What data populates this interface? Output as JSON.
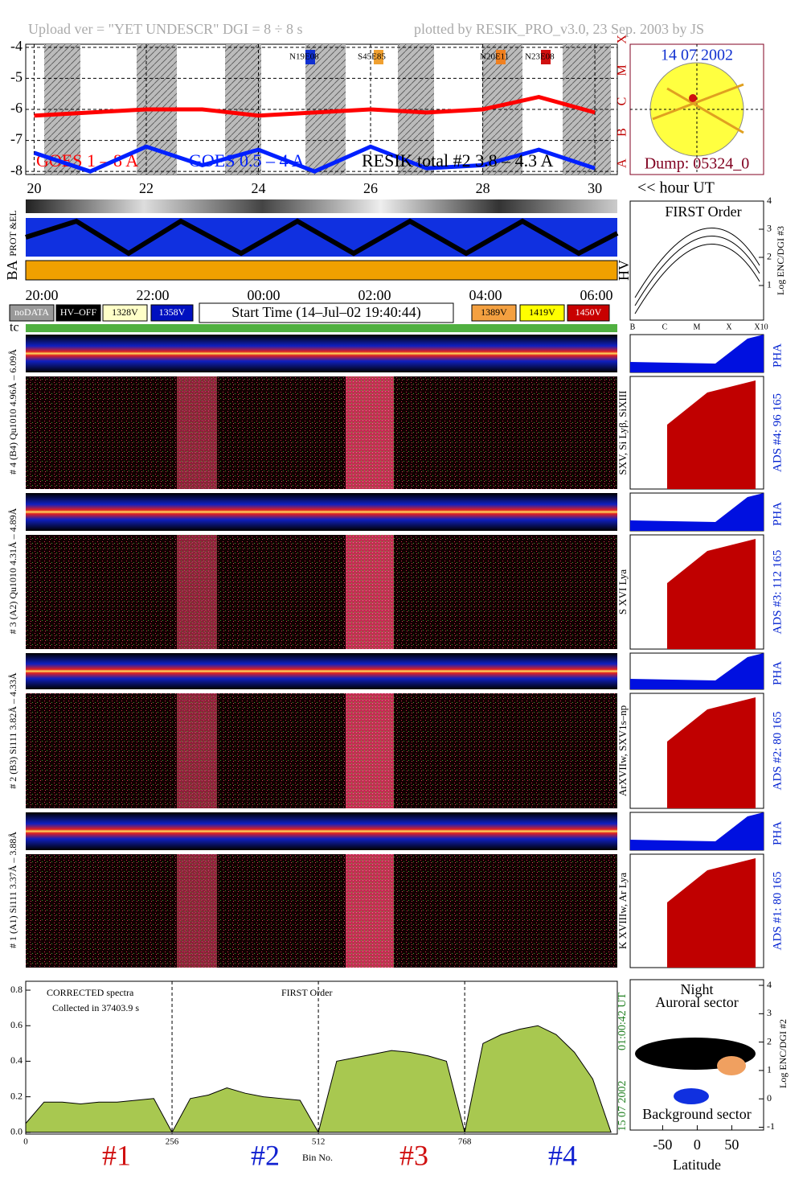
{
  "header": {
    "upload": "Upload ver = \"YET UNDESCR\"  DGI =   8 ÷   8 s",
    "plotted": "plotted by RESIK_PRO_v3.0, 23 Sep. 2003 by JS"
  },
  "goes": {
    "type": "line",
    "xlim": [
      19.85,
      30.4
    ],
    "ylim": [
      -8.1,
      -3.9
    ],
    "yticks": [
      -4,
      -5,
      -6,
      -7,
      -8
    ],
    "xticks": [
      20,
      22,
      24,
      26,
      28,
      30
    ],
    "classes": [
      "X",
      "M",
      "C",
      "B",
      "A"
    ],
    "regions": [
      {
        "label": "N19E08",
        "color": "#1030d0"
      },
      {
        "label": "S45E85",
        "color": "#f0a030"
      },
      {
        "label": "N20E11",
        "color": "#f08020"
      },
      {
        "label": "N23E08",
        "color": "#d01010"
      }
    ],
    "x": [
      20,
      21,
      22,
      23,
      24,
      25,
      26,
      27,
      28,
      29,
      30
    ],
    "series": [
      {
        "name": "GOES 1 – 8 A",
        "color": "#ff0000",
        "values": [
          -6.2,
          -6.1,
          -6.0,
          -6.0,
          -6.2,
          -6.1,
          -6.0,
          -6.1,
          -6.0,
          -5.6,
          -6.1
        ]
      },
      {
        "name": "GOES 0.5 – 4 A",
        "color": "#0020ff",
        "values": [
          -7.4,
          -8.0,
          -7.2,
          -7.8,
          -7.3,
          -8.0,
          -7.2,
          -7.9,
          -7.8,
          -7.3,
          -7.9
        ]
      }
    ],
    "resik_label": "RESIK total #2 3.8 – 4.3 A",
    "x_unit": "<< hour UT"
  },
  "sun": {
    "date": "14 07 2002",
    "dump": "Dump: 05324_0"
  },
  "bands": {
    "prot": "PROT &EL",
    "ba": "BA",
    "hv": "HV"
  },
  "time_axis": [
    "20:00",
    "22:00",
    "00:00",
    "02:00",
    "04:00",
    "06:00"
  ],
  "voltage_legend": [
    {
      "label": "noDATA",
      "color": "#999999"
    },
    {
      "label": "HV–OFF",
      "color": "#000000"
    },
    {
      "label": "1328V",
      "color": "#ffffc8"
    },
    {
      "label": "1358V",
      "color": "#0010c0"
    },
    {
      "label": "1389V",
      "color": "#f4a040"
    },
    {
      "label": "1419V",
      "color": "#ffff00"
    },
    {
      "label": "1450V",
      "color": "#c80000"
    }
  ],
  "start_time": "Start Time (14–Jul–02 19:40:44)",
  "first_order": {
    "title": "FIRST Order",
    "ylabel": "Log ENC/DGI #3",
    "ylim": [
      -0.23,
      4
    ],
    "yticks": [
      1,
      2,
      3,
      4
    ],
    "categories": [
      "B",
      "C",
      "M",
      "X",
      "X10"
    ]
  },
  "tc": "tc",
  "detectors": [
    {
      "label": "# 4 (B4) Qu1010 4.96Å – 6.09Å",
      "lines": "SXV, Si Lyβ, SiXIII",
      "ads": "ADS #4:   96 165",
      "pha": "PHA"
    },
    {
      "label": "# 3 (A2) Qu1010 4.31Å – 4.89Å",
      "lines": "S XVI Lya",
      "ads": "ADS #3:   112 165",
      "pha": "PHA"
    },
    {
      "label": "# 2 (B3) Si111 3.82Å – 4.33Å",
      "lines": "ArXVIIw, SXV1s–np",
      "ads": "ADS #2:   80 165",
      "pha": "PHA"
    },
    {
      "label": "# 1 (A1) Si111 3.37Å – 3.88Å",
      "lines": "K XVIIIw, Ar Lya",
      "ads": "ADS #1:   80 165",
      "pha": "PHA"
    }
  ],
  "spectrum": {
    "type": "area",
    "title": "FIRST Order",
    "note1": "CORRECTED spectra",
    "note2": "Collected in 37403.9 s",
    "xlabel": "Bin No.",
    "xlim": [
      0,
      1035
    ],
    "ylim": [
      -0.01,
      0.85
    ],
    "yticks": [
      0.0,
      0.2,
      0.4,
      0.6,
      0.8
    ],
    "xticks": [
      0,
      256,
      512,
      768
    ],
    "yticklabels": [
      "0.0",
      "0.2",
      "0.4",
      "0.6",
      "0.8"
    ],
    "x": [
      0,
      32,
      64,
      96,
      128,
      160,
      192,
      224,
      256,
      288,
      320,
      352,
      384,
      416,
      448,
      480,
      512,
      544,
      576,
      608,
      640,
      672,
      704,
      736,
      768,
      800,
      832,
      864,
      896,
      928,
      960,
      992,
      1024
    ],
    "values": [
      0.05,
      0.17,
      0.17,
      0.16,
      0.17,
      0.17,
      0.18,
      0.19,
      0.0,
      0.19,
      0.21,
      0.25,
      0.22,
      0.2,
      0.19,
      0.18,
      0.0,
      0.4,
      0.42,
      0.44,
      0.46,
      0.45,
      0.43,
      0.4,
      0.0,
      0.5,
      0.55,
      0.58,
      0.6,
      0.55,
      0.45,
      0.3,
      0.0
    ],
    "color": "#a8c850",
    "sections": [
      "#1",
      "#2",
      "#3",
      "#4"
    ],
    "time": "01:00:42 UT",
    "date": "15 07 2002"
  },
  "latitude": {
    "title": "Night",
    "top": "Auroral sector",
    "bottom": "Background sector",
    "xlabel": "Latitude",
    "ylabel": "Log ENC/DGI #2",
    "xlim": [
      -97,
      96
    ],
    "ylim": [
      -1.1,
      4.2
    ],
    "xticks": [
      -50,
      0,
      50
    ],
    "yticks": [
      -1,
      0,
      1,
      2,
      3,
      4
    ]
  }
}
